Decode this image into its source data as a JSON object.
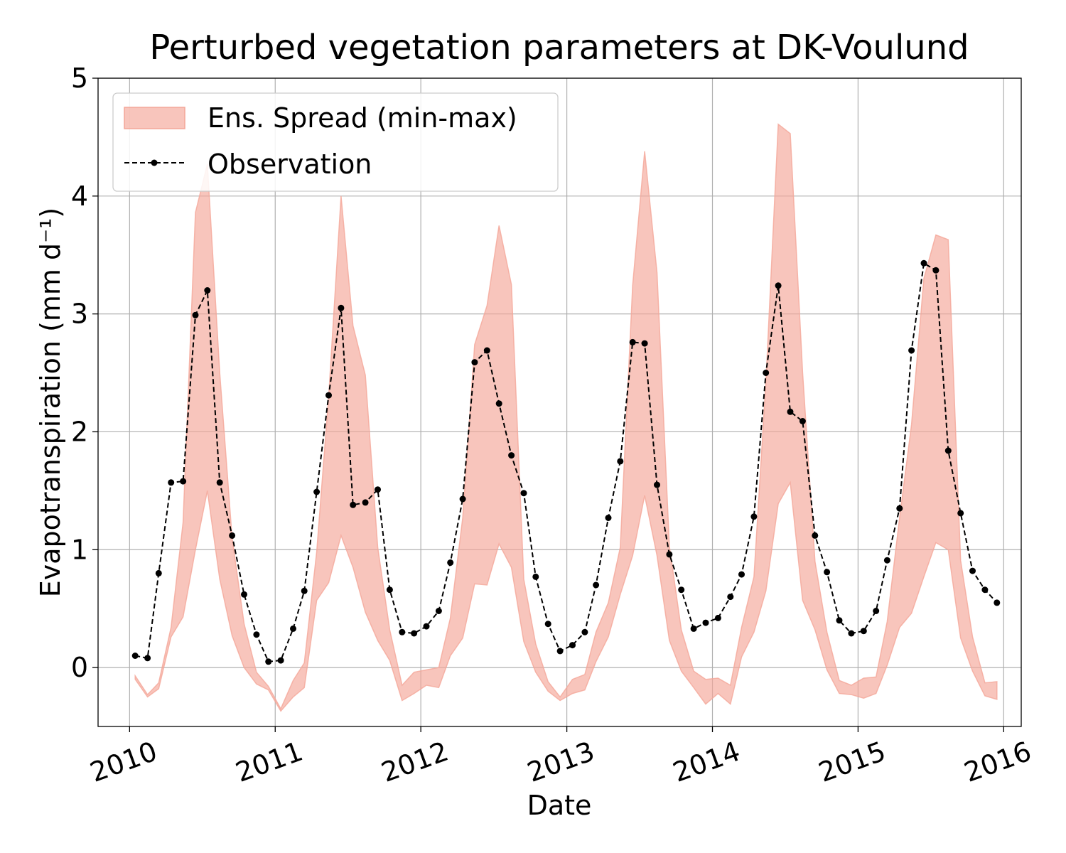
{
  "chart_data": {
    "type": "line",
    "title": "Perturbed vegetation parameters at DK-Voulund",
    "xlabel": "Date",
    "ylabel": "Evapotranspiration  (mm d⁻¹)",
    "xlim": [
      "2009-10-14",
      "2016-02-14"
    ],
    "ylim": [
      -0.5,
      5
    ],
    "xticks": [
      "2010",
      "2011",
      "2012",
      "2013",
      "2014",
      "2015",
      "2016"
    ],
    "yticks": [
      "0",
      "1",
      "2",
      "3",
      "4",
      "5"
    ],
    "grid": true,
    "legend_position": "top-left",
    "colors": {
      "spread": "#f4a698",
      "observation": "#000000"
    },
    "dates": [
      "2010-01",
      "2010-02",
      "2010-03",
      "2010-04",
      "2010-05",
      "2010-06",
      "2010-07",
      "2010-08",
      "2010-09",
      "2010-10",
      "2010-11",
      "2010-12",
      "2011-01",
      "2011-02",
      "2011-03",
      "2011-04",
      "2011-05",
      "2011-06",
      "2011-07",
      "2011-08",
      "2011-09",
      "2011-10",
      "2011-11",
      "2011-12",
      "2012-01",
      "2012-02",
      "2012-03",
      "2012-04",
      "2012-05",
      "2012-06",
      "2012-07",
      "2012-08",
      "2012-09",
      "2012-10",
      "2012-11",
      "2012-12",
      "2013-01",
      "2013-02",
      "2013-03",
      "2013-04",
      "2013-05",
      "2013-06",
      "2013-07",
      "2013-08",
      "2013-09",
      "2013-10",
      "2013-11",
      "2013-12",
      "2014-01",
      "2014-02",
      "2014-03",
      "2014-04",
      "2014-05",
      "2014-06",
      "2014-07",
      "2014-08",
      "2014-09",
      "2014-10",
      "2014-11",
      "2014-12",
      "2015-01",
      "2015-02",
      "2015-03",
      "2015-04",
      "2015-05",
      "2015-06",
      "2015-07",
      "2015-08",
      "2015-09",
      "2015-10",
      "2015-11",
      "2015-12"
    ],
    "series": [
      {
        "name": "Ens. Spread (min-max)",
        "kind": "band",
        "min": [
          -0.1,
          -0.25,
          -0.18,
          0.26,
          0.43,
          1.0,
          1.5,
          0.75,
          0.27,
          0.0,
          -0.14,
          -0.19,
          -0.37,
          -0.25,
          -0.17,
          0.57,
          0.72,
          1.12,
          0.85,
          0.47,
          0.23,
          0.06,
          -0.28,
          -0.22,
          -0.15,
          -0.17,
          0.1,
          0.25,
          0.71,
          0.7,
          1.05,
          0.85,
          0.22,
          -0.04,
          -0.2,
          -0.28,
          -0.22,
          -0.19,
          0.05,
          0.26,
          0.62,
          0.95,
          1.46,
          0.95,
          0.23,
          -0.03,
          -0.17,
          -0.31,
          -0.22,
          -0.31,
          0.09,
          0.3,
          0.65,
          1.39,
          1.57,
          0.57,
          0.32,
          -0.02,
          -0.22,
          -0.23,
          -0.26,
          -0.22,
          0.02,
          0.34,
          0.46,
          0.77,
          1.06,
          1.0,
          0.25,
          -0.03,
          -0.24,
          -0.27
        ],
        "max": [
          -0.07,
          -0.23,
          -0.13,
          0.34,
          1.23,
          3.86,
          4.27,
          2.5,
          1.1,
          0.37,
          -0.04,
          -0.16,
          -0.35,
          -0.11,
          0.04,
          0.98,
          2.3,
          4.0,
          2.9,
          2.48,
          1.02,
          0.32,
          -0.15,
          -0.04,
          -0.02,
          0.0,
          0.42,
          1.27,
          2.74,
          3.07,
          3.75,
          3.25,
          0.75,
          0.2,
          -0.12,
          -0.25,
          -0.1,
          -0.06,
          0.3,
          0.55,
          1.02,
          3.24,
          4.38,
          3.35,
          1.03,
          0.32,
          -0.03,
          -0.1,
          -0.09,
          -0.15,
          0.34,
          0.77,
          2.42,
          4.61,
          4.53,
          2.5,
          0.9,
          0.3,
          -0.11,
          -0.15,
          -0.09,
          -0.08,
          0.39,
          1.27,
          2.06,
          3.3,
          3.67,
          3.63,
          0.91,
          0.26,
          -0.13,
          -0.12
        ]
      },
      {
        "name": "Observation",
        "kind": "line",
        "values": [
          0.1,
          0.08,
          0.8,
          1.57,
          1.58,
          2.99,
          3.2,
          1.57,
          1.12,
          0.62,
          0.28,
          0.05,
          0.06,
          0.33,
          0.65,
          1.49,
          2.31,
          3.05,
          1.38,
          1.4,
          1.51,
          0.66,
          0.3,
          0.29,
          0.35,
          0.48,
          0.89,
          1.43,
          2.59,
          2.69,
          2.24,
          1.8,
          1.48,
          0.77,
          0.37,
          0.14,
          0.19,
          0.3,
          0.7,
          1.27,
          1.75,
          2.76,
          2.75,
          1.55,
          0.96,
          0.66,
          0.33,
          0.38,
          0.42,
          0.6,
          0.79,
          1.28,
          2.5,
          3.24,
          2.17,
          2.09,
          1.12,
          0.81,
          0.4,
          0.29,
          0.31,
          0.48,
          0.91,
          1.35,
          2.69,
          3.43,
          3.37,
          1.84,
          1.31,
          0.82,
          0.66,
          0.55
        ]
      }
    ]
  }
}
